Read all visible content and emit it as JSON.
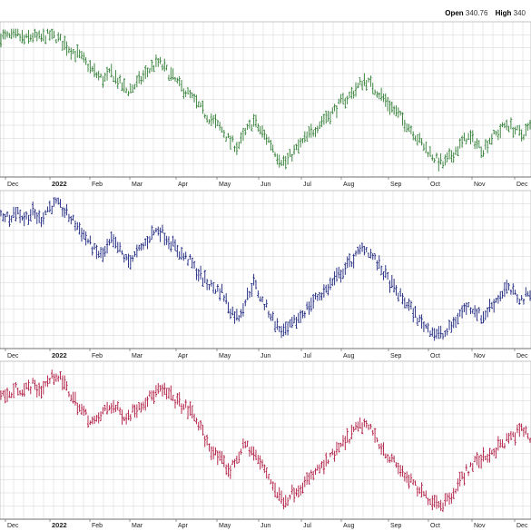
{
  "quote": {
    "open_label": "Open",
    "open_value": "340.76",
    "high_label": "High",
    "high_value": "340"
  },
  "colors": {
    "panel1": "#2e7d32",
    "panel2": "#1a237e",
    "panel3": "#b0163f",
    "grid": "#d4d4d4"
  },
  "chart_data": [
    {
      "type": "ohlc-bar",
      "color": "#2e7d32",
      "x_ticks": [
        "Dec",
        "2022",
        "Feb",
        "Mar",
        "Apr",
        "May",
        "Jun",
        "Jul",
        "Aug",
        "Sep",
        "Oct",
        "Nov",
        "Dec"
      ],
      "grid": true,
      "series_shape": [
        0.94,
        0.93,
        0.95,
        0.91,
        0.94,
        0.92,
        0.95,
        0.93,
        0.89,
        0.84,
        0.8,
        0.74,
        0.68,
        0.64,
        0.69,
        0.62,
        0.56,
        0.6,
        0.66,
        0.72,
        0.76,
        0.7,
        0.64,
        0.58,
        0.53,
        0.46,
        0.4,
        0.35,
        0.3,
        0.22,
        0.18,
        0.28,
        0.36,
        0.28,
        0.22,
        0.12,
        0.07,
        0.14,
        0.2,
        0.26,
        0.32,
        0.38,
        0.42,
        0.48,
        0.52,
        0.58,
        0.64,
        0.6,
        0.54,
        0.48,
        0.42,
        0.36,
        0.3,
        0.22,
        0.16,
        0.1,
        0.06,
        0.12,
        0.18,
        0.25,
        0.22,
        0.16,
        0.24,
        0.28,
        0.34,
        0.3,
        0.26,
        0.32
      ]
    },
    {
      "type": "ohlc-bar",
      "color": "#1a237e",
      "x_ticks": [
        "Dec",
        "2022",
        "Feb",
        "Mar",
        "Apr",
        "May",
        "Jun",
        "Jul",
        "Aug",
        "Sep",
        "Oct",
        "Nov",
        "Dec"
      ],
      "grid": true,
      "series_shape": [
        0.88,
        0.86,
        0.9,
        0.85,
        0.89,
        0.84,
        0.92,
        0.95,
        0.9,
        0.84,
        0.78,
        0.7,
        0.62,
        0.6,
        0.7,
        0.64,
        0.56,
        0.6,
        0.66,
        0.74,
        0.78,
        0.72,
        0.66,
        0.6,
        0.56,
        0.48,
        0.42,
        0.38,
        0.36,
        0.24,
        0.18,
        0.3,
        0.42,
        0.3,
        0.22,
        0.12,
        0.08,
        0.14,
        0.2,
        0.26,
        0.32,
        0.36,
        0.42,
        0.48,
        0.54,
        0.6,
        0.66,
        0.6,
        0.52,
        0.44,
        0.36,
        0.3,
        0.24,
        0.16,
        0.12,
        0.08,
        0.06,
        0.12,
        0.2,
        0.26,
        0.24,
        0.18,
        0.26,
        0.32,
        0.38,
        0.34,
        0.3,
        0.36
      ]
    },
    {
      "type": "ohlc-bar",
      "color": "#b0163f",
      "x_ticks": [
        "Dec",
        "2022",
        "Feb",
        "Mar",
        "Apr",
        "May",
        "Jun",
        "Jul",
        "Aug",
        "Sep",
        "Oct",
        "Nov",
        "Dec"
      ],
      "grid": true,
      "series_shape": [
        0.82,
        0.8,
        0.86,
        0.84,
        0.88,
        0.84,
        0.9,
        0.95,
        0.88,
        0.8,
        0.72,
        0.66,
        0.62,
        0.7,
        0.74,
        0.7,
        0.66,
        0.72,
        0.76,
        0.8,
        0.84,
        0.82,
        0.78,
        0.74,
        0.7,
        0.62,
        0.5,
        0.42,
        0.36,
        0.3,
        0.4,
        0.48,
        0.42,
        0.34,
        0.26,
        0.14,
        0.1,
        0.16,
        0.2,
        0.24,
        0.3,
        0.34,
        0.4,
        0.46,
        0.52,
        0.58,
        0.62,
        0.56,
        0.48,
        0.4,
        0.34,
        0.28,
        0.22,
        0.16,
        0.12,
        0.1,
        0.08,
        0.14,
        0.22,
        0.3,
        0.36,
        0.38,
        0.42,
        0.46,
        0.5,
        0.54,
        0.58,
        0.52
      ]
    }
  ]
}
